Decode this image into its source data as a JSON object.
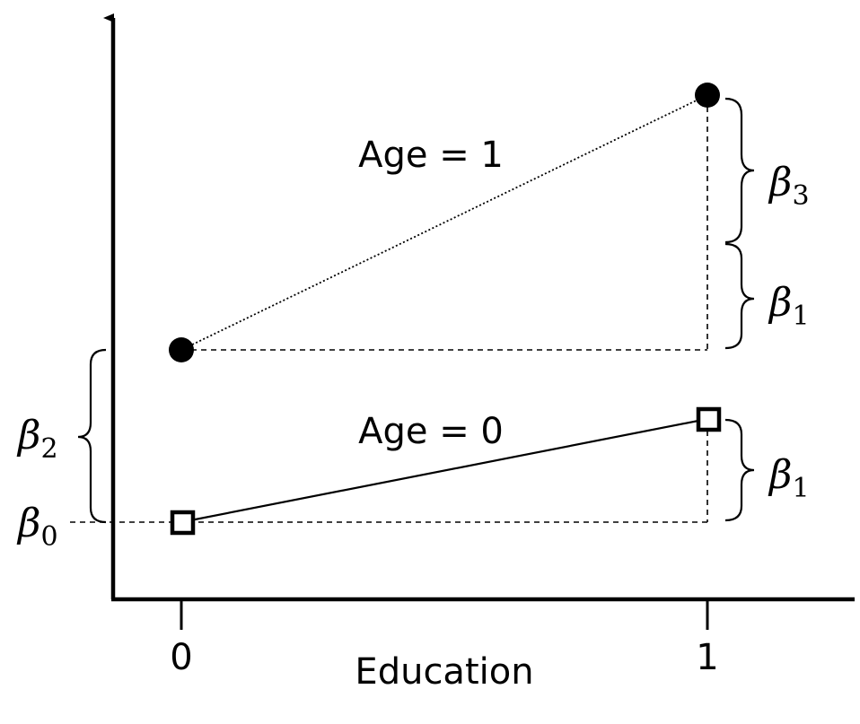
{
  "diagram": {
    "x_axis_label": "Education",
    "x_ticks": [
      "0",
      "1"
    ],
    "series": [
      {
        "label": "Age = 1",
        "marker": "filled-circle",
        "line_style": "dotted"
      },
      {
        "label": "Age = 0",
        "marker": "open-square",
        "line_style": "solid"
      }
    ],
    "brackets": {
      "top_upper": {
        "symbol": "β",
        "subscript": "3"
      },
      "top_lower": {
        "symbol": "β",
        "subscript": "1"
      },
      "bottom": {
        "symbol": "β",
        "subscript": "1"
      },
      "left": {
        "symbol": "β",
        "subscript": "2"
      },
      "intercept": {
        "symbol": "β",
        "subscript": "0"
      }
    }
  },
  "colors": {
    "ink": "#000000",
    "background": "#ffffff"
  }
}
